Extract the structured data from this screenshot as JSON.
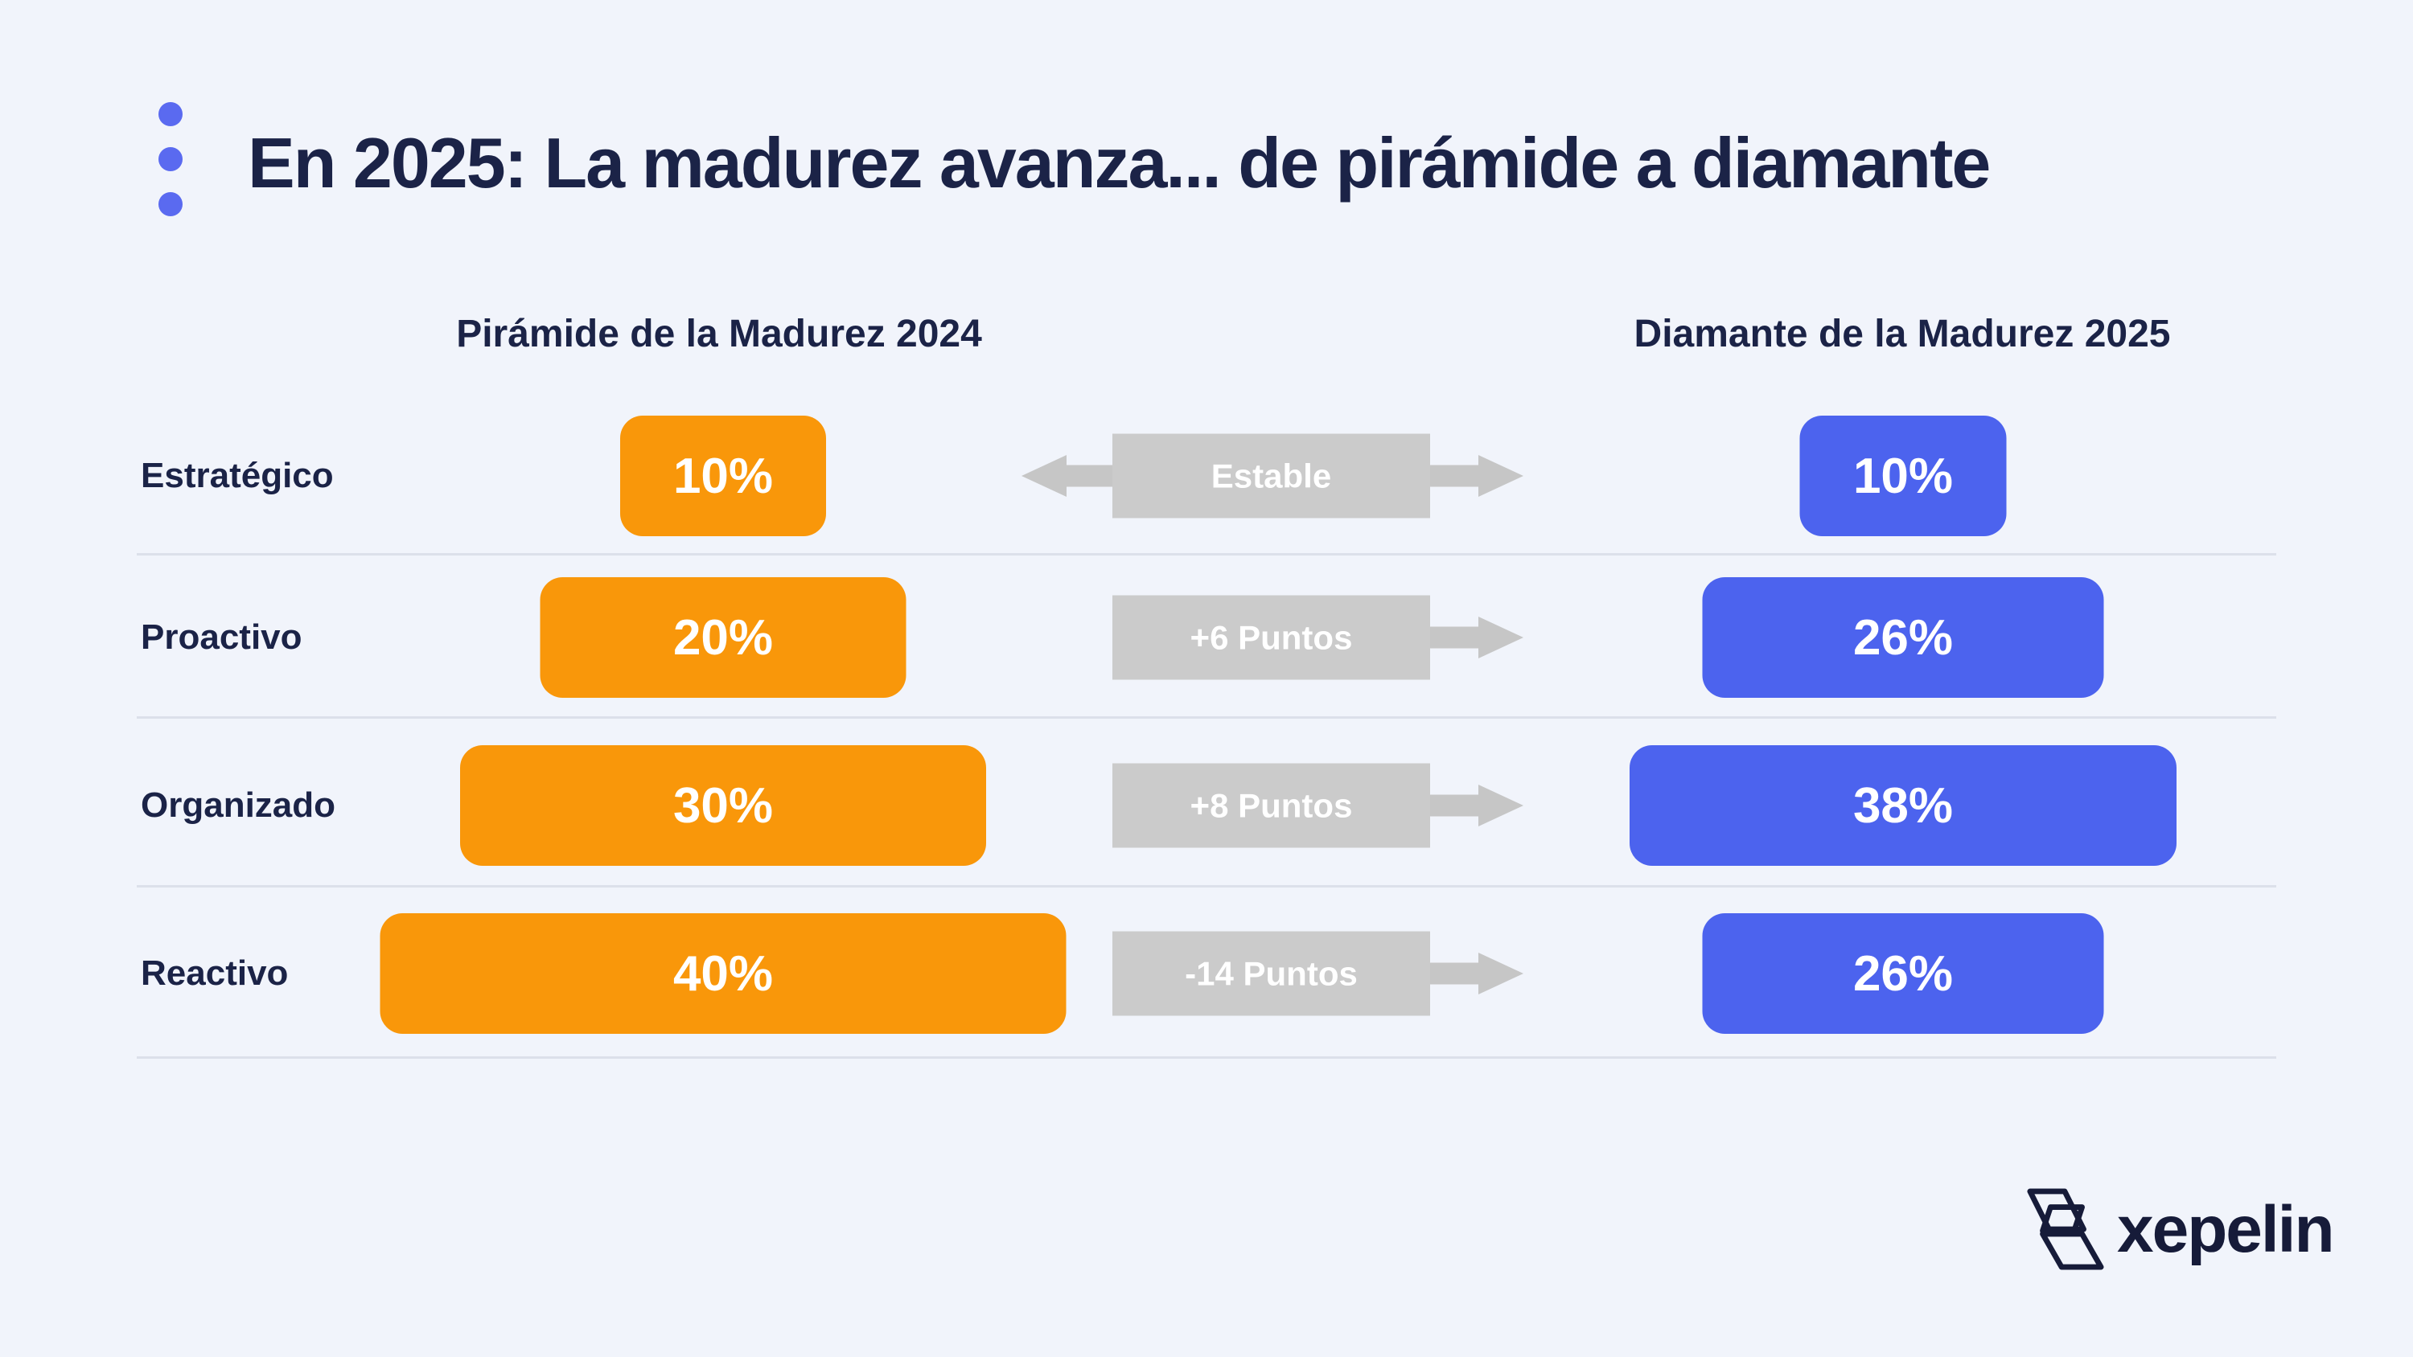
{
  "background": "#F1F4FB",
  "title": {
    "text": "En 2025: La madurez avanza... de pirámide a diamante",
    "accent_dots_color": "#5A6AF0"
  },
  "headers": {
    "left": "Pirámide de la Madurez 2024",
    "right": "Diamante de la Madurez 2025"
  },
  "rows": [
    {
      "label": "Estratégico",
      "left_value": "10%",
      "change": "Estable",
      "right_value": "10%",
      "arrows": "both"
    },
    {
      "label": "Proactivo",
      "left_value": "20%",
      "change": "+6 Puntos",
      "right_value": "26%",
      "arrows": "right"
    },
    {
      "label": "Organizado",
      "left_value": "30%",
      "change": "+8 Puntos",
      "right_value": "38%",
      "arrows": "right"
    },
    {
      "label": "Reactivo",
      "left_value": "40%",
      "change": "-14 Puntos",
      "right_value": "26%",
      "arrows": "right"
    }
  ],
  "colors": {
    "orange_2024": "#F9970A",
    "blue_2025": "#4C63EE",
    "change_box_gray": "#CBCBCB",
    "arrow_gray": "#C6C6C6",
    "navy_text": "#1B2347",
    "divider": "#DCE0EA",
    "bar_text": "#FFFFFF"
  },
  "logo": {
    "wordmark": "xepelin"
  },
  "chart_data": {
    "type": "bar",
    "orientation": "horizontal",
    "title": "En 2025: La madurez avanza... de pirámide a diamante",
    "categories": [
      "Estratégico",
      "Proactivo",
      "Organizado",
      "Reactivo"
    ],
    "series": [
      {
        "name": "Pirámide de la Madurez 2024",
        "values": [
          10,
          20,
          30,
          40
        ],
        "color": "#F9970A"
      },
      {
        "name": "Diamante de la Madurez 2025",
        "values": [
          10,
          26,
          38,
          26
        ],
        "color": "#4C63EE"
      }
    ],
    "changes": [
      "Estable",
      "+6 Puntos",
      "+8 Puntos",
      "-14 Puntos"
    ],
    "unit": "%",
    "value_labels_shown": true,
    "legend_position": "column-headers",
    "grid": "row-dividers-only"
  }
}
